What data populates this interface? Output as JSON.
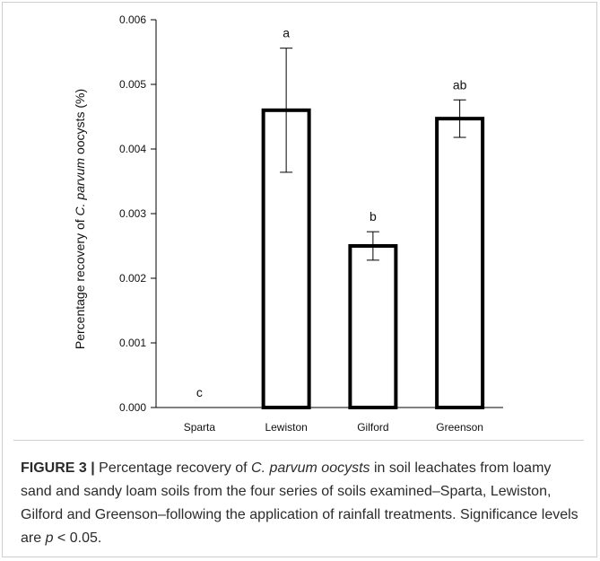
{
  "chart_data": {
    "type": "bar",
    "categories": [
      "Sparta",
      "Lewiston",
      "Gilford",
      "Greenson"
    ],
    "values": [
      0.0,
      0.0046,
      0.0025,
      0.00447
    ],
    "error_upper": [
      null,
      0.00556,
      0.00272,
      0.00476
    ],
    "error_lower": [
      null,
      0.00364,
      0.00228,
      0.00418
    ],
    "significance_letters": [
      "c",
      "a",
      "b",
      "ab"
    ],
    "ylabel_prefix": "Percentage recovery of ",
    "ylabel_italic": "C. parvum",
    "ylabel_suffix": " oocysts (%)",
    "xlabel": "",
    "ylim": [
      0,
      0.006
    ],
    "yticks": [
      "0.000",
      "0.001",
      "0.002",
      "0.003",
      "0.004",
      "0.005",
      "0.006"
    ],
    "ytick_values": [
      0,
      0.001,
      0.002,
      0.003,
      0.004,
      0.005,
      0.006
    ],
    "grid": false,
    "bar_fill": "#ffffff",
    "bar_stroke": "#000000"
  },
  "caption": {
    "label": "FIGURE 3",
    "separator": "|",
    "text_1": " Percentage recovery of ",
    "italic_1": "C. parvum oocysts",
    "text_2": " in soil leachates from loamy sand and sandy loam soils from the four series of soils examined–Sparta, Lewiston, Gilford and Greenson–following the application of rainfall treatments. Significance levels are ",
    "italic_2": "p",
    "text_3": " < 0.05."
  }
}
